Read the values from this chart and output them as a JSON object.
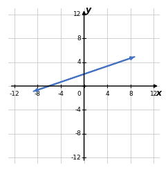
{
  "xlim": [
    -12,
    12
  ],
  "ylim": [
    -12,
    12
  ],
  "xticks": [
    -12,
    -8,
    -4,
    4,
    8,
    12
  ],
  "yticks": [
    -12,
    -8,
    -4,
    4,
    8,
    12
  ],
  "x_label_ticks": [
    -12,
    -8,
    -4,
    0,
    4,
    8,
    12
  ],
  "y_label_ticks": [
    -12,
    -8,
    -4,
    4,
    8,
    12
  ],
  "line_x": [
    -9,
    9
  ],
  "line_y": [
    -1,
    5
  ],
  "line_color": "#4472C4",
  "line_width": 1.5,
  "grid_color": "#BFBFBF",
  "background_color": "#FFFFFF",
  "tick_label_fontsize": 6.5,
  "axis_label_fontsize": 9
}
